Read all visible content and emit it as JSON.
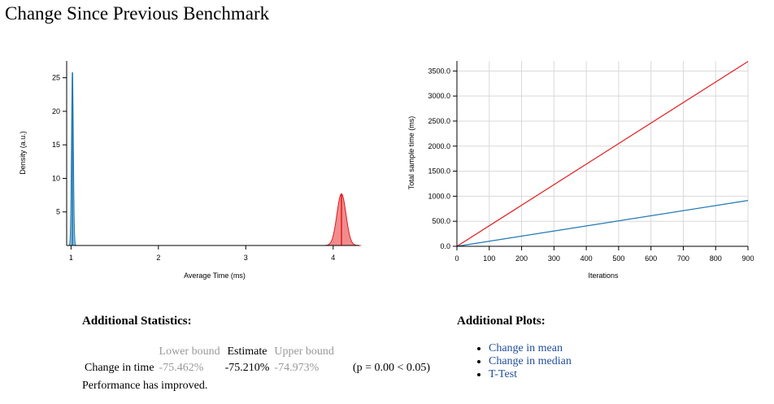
{
  "page": {
    "title": "Change Since Previous Benchmark"
  },
  "chart_data": [
    {
      "type": "area",
      "title": "",
      "xlabel": "Average Time (ms)",
      "ylabel": "Density (a.u.)",
      "xlim": [
        0.95,
        4.3
      ],
      "ylim": [
        0,
        27.5
      ],
      "xticks": [
        1,
        2,
        3,
        4
      ],
      "yticks": [
        5,
        10,
        15,
        20,
        25
      ],
      "series": [
        {
          "name": "",
          "color": "#1f78b4",
          "mean": 1.016,
          "sd": 0.0105,
          "peak": 25.8,
          "marker": 1.016,
          "shade": [
            0.985,
            1.05
          ]
        },
        {
          "name": "",
          "color": "#e31a1c",
          "mean": 4.095,
          "sd": 0.052,
          "peak": 7.7,
          "marker": 4.095,
          "shade": [
            3.97,
            4.22
          ]
        }
      ]
    },
    {
      "type": "line",
      "title": "",
      "xlabel": "Iterations",
      "ylabel": "Total sample time (ms)",
      "xlim": [
        0,
        900
      ],
      "ylim": [
        0,
        3700
      ],
      "xticks": [
        0,
        100,
        200,
        300,
        400,
        500,
        600,
        700,
        800,
        900
      ],
      "yticks": [
        0,
        500,
        1000,
        1500,
        2000,
        2500,
        3000,
        3500
      ],
      "ytick_labels": [
        "0.0",
        "500.0",
        "1000.0",
        "1500.0",
        "2000.0",
        "2500.0",
        "3000.0",
        "3500.0"
      ],
      "grid": true,
      "series": [
        {
          "name": "",
          "color": "#e31a1c",
          "x": [
            0,
            900
          ],
          "y": [
            0,
            3690
          ]
        },
        {
          "name": "",
          "color": "#1f78b4",
          "x": [
            0,
            900
          ],
          "y": [
            0,
            915
          ]
        }
      ]
    }
  ],
  "stats": {
    "heading": "Additional Statistics:",
    "col_lower": "Lower bound",
    "col_estimate": "Estimate",
    "col_upper": "Upper bound",
    "row_label": "Change in time",
    "lower": "-75.462%",
    "estimate": "-75.210%",
    "upper": "-74.973%",
    "pvalue": "(p = 0.00 < 0.05)",
    "verdict": "Performance has improved."
  },
  "plots": {
    "heading": "Additional Plots:",
    "links": [
      "Change in mean",
      "Change in median",
      "T-Test"
    ]
  }
}
